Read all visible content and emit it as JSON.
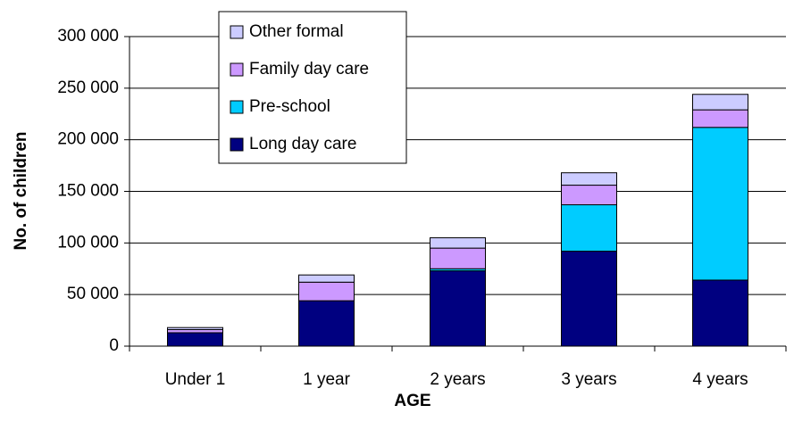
{
  "chart_data": {
    "type": "stacked_bar",
    "x_label": "AGE",
    "y_label": "No. of children",
    "categories": [
      "Under 1",
      "1 year",
      "2 years",
      "3 years",
      "4 years"
    ],
    "series": [
      {
        "name": "Long day care",
        "color": "#000080",
        "values": [
          13000,
          44000,
          73000,
          92000,
          64000
        ]
      },
      {
        "name": "Pre-school",
        "color": "#00ccff",
        "values": [
          0,
          0,
          2000,
          45000,
          148000
        ]
      },
      {
        "name": "Family day care",
        "color": "#cc99ff",
        "values": [
          3000,
          18000,
          20000,
          19000,
          17000
        ]
      },
      {
        "name": "Other formal",
        "color": "#ccccff",
        "values": [
          2000,
          7000,
          10000,
          12000,
          15000
        ]
      }
    ],
    "ylim": [
      0,
      300000
    ],
    "yticks": [
      0,
      {
        "value": 50000,
        "label": "50 000"
      },
      {
        "value": 100000,
        "label": "100 000"
      },
      {
        "value": 150000,
        "label": "150 000"
      },
      {
        "value": 200000,
        "label": "200 000"
      },
      {
        "value": 250000,
        "label": "250 000"
      },
      {
        "value": 300000,
        "label": "300 000"
      }
    ],
    "grid": true
  }
}
